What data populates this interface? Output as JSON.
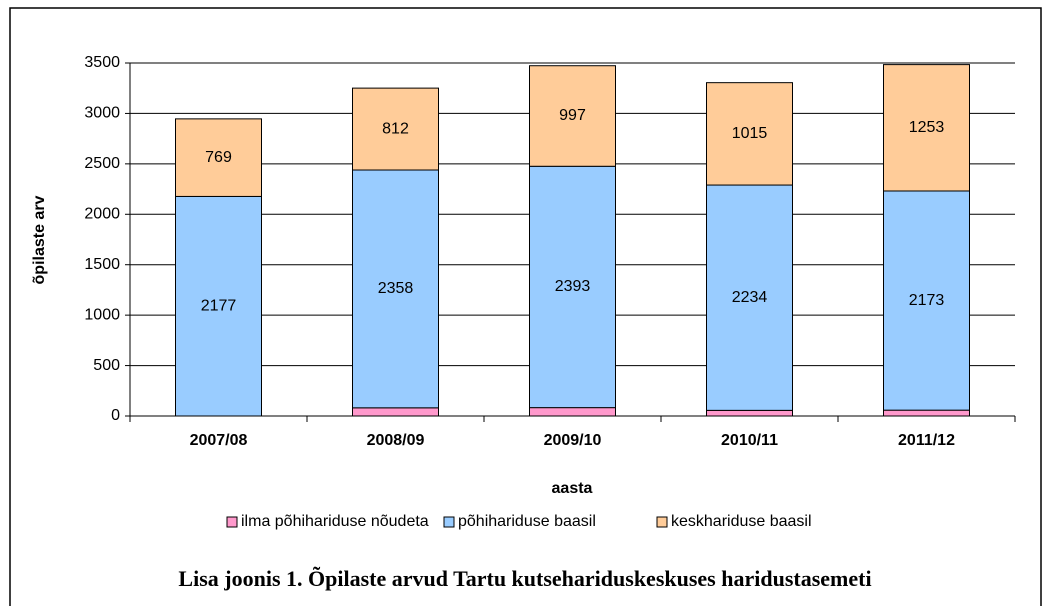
{
  "chart_data": {
    "type": "bar",
    "stacked": true,
    "caption": "Lisa joonis 1. Õpilaste arvud Tartu kutsehariduskeskuses haridustasemeti",
    "x_label": "aasta",
    "y_label": "õpilaste arv",
    "categories": [
      "2007/08",
      "2008/09",
      "2009/10",
      "2010/11",
      "2011/12"
    ],
    "series": [
      {
        "name": "ilma põhihariduse nõudeta",
        "color": "#ff99cc",
        "values": [
          0,
          81,
          83,
          56,
          58
        ]
      },
      {
        "name": "põhihariduse baasil",
        "color": "#99ccff",
        "values": [
          2177,
          2358,
          2393,
          2234,
          2173
        ]
      },
      {
        "name": "keskhariduse baasil",
        "color": "#ffcc99",
        "values": [
          769,
          812,
          997,
          1015,
          1253
        ]
      }
    ],
    "ylim": [
      0,
      3500
    ],
    "yticks": [
      0,
      500,
      1000,
      1500,
      2000,
      2500,
      3000,
      3500
    ],
    "grid": true,
    "legend": "bottom"
  }
}
